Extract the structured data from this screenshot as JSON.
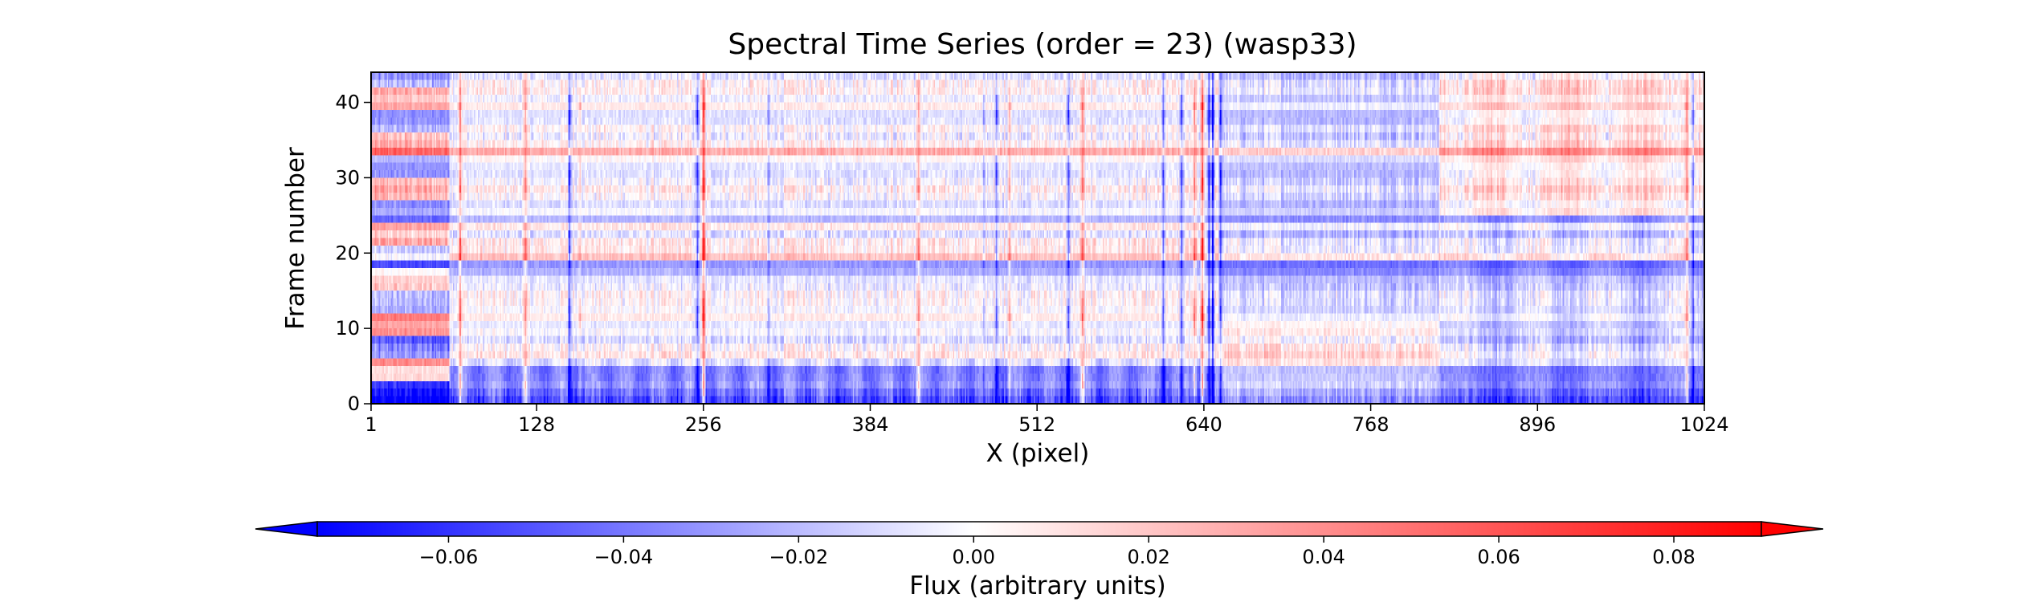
{
  "chart_data": {
    "type": "heatmap",
    "title": "Spectral Time Series (order = 23) (wasp33)",
    "xlabel": "X (pixel)",
    "ylabel": "Frame number",
    "xlim": [
      1,
      1024
    ],
    "ylim": [
      0,
      44
    ],
    "x_ticks": [
      1,
      128,
      256,
      384,
      512,
      640,
      768,
      896,
      1024
    ],
    "x_tick_labels": [
      "1",
      "128",
      "256",
      "384",
      "512",
      "640",
      "768",
      "896",
      "1024"
    ],
    "y_ticks": [
      0,
      10,
      20,
      30,
      40
    ],
    "y_tick_labels": [
      "0",
      "10",
      "20",
      "30",
      "40"
    ],
    "n_frames": 44,
    "n_pixels": 1024,
    "colormap": "bwr",
    "color_min": -0.075,
    "color_max": 0.09,
    "features": {
      "vertical_columns": [
        {
          "x": 68,
          "amplitude": 0.05
        },
        {
          "x": 118,
          "amplitude": 0.04
        },
        {
          "x": 152,
          "amplitude": -0.07
        },
        {
          "x": 160,
          "amplitude": 0.03
        },
        {
          "x": 250,
          "amplitude": -0.07
        },
        {
          "x": 255,
          "amplitude": 0.09
        },
        {
          "x": 305,
          "amplitude": -0.035
        },
        {
          "x": 420,
          "amplitude": 0.035
        },
        {
          "x": 470,
          "amplitude": -0.03
        },
        {
          "x": 480,
          "amplitude": -0.06
        },
        {
          "x": 490,
          "amplitude": 0.04
        },
        {
          "x": 535,
          "amplitude": -0.06
        },
        {
          "x": 546,
          "amplitude": 0.06
        },
        {
          "x": 608,
          "amplitude": -0.05
        },
        {
          "x": 622,
          "amplitude": -0.06
        },
        {
          "x": 632,
          "amplitude": 0.06
        },
        {
          "x": 638,
          "amplitude": 0.09
        },
        {
          "x": 643,
          "amplitude": -0.08
        },
        {
          "x": 646,
          "amplitude": -0.09
        },
        {
          "x": 652,
          "amplitude": -0.05
        },
        {
          "x": 1010,
          "amplitude": 0.05
        },
        {
          "x": 1015,
          "amplitude": -0.05
        }
      ],
      "horizontal_bands": [
        {
          "frame": 0,
          "amplitude": -0.045
        },
        {
          "frame": 1,
          "amplitude": -0.04
        },
        {
          "frame": 2,
          "amplitude": -0.03
        },
        {
          "frame": 3,
          "amplitude": -0.025
        },
        {
          "frame": 4,
          "amplitude": -0.02
        },
        {
          "frame": 8,
          "amplitude": -0.015
        },
        {
          "frame": 17,
          "amplitude": -0.015
        },
        {
          "frame": 18,
          "amplitude": -0.025
        },
        {
          "frame": 19,
          "amplitude": 0.015
        },
        {
          "frame": 20,
          "amplitude": 0.01
        },
        {
          "frame": 24,
          "amplitude": -0.02
        },
        {
          "frame": 28,
          "amplitude": 0.015
        },
        {
          "frame": 33,
          "amplitude": 0.02
        },
        {
          "frame": 38,
          "amplitude": -0.01
        }
      ]
    },
    "colorbar": {
      "label": "Flux (arbitrary units)",
      "orientation": "horizontal",
      "extend": "both",
      "ticks": [
        -0.06,
        -0.04,
        -0.02,
        0.0,
        0.02,
        0.04,
        0.06,
        0.08
      ],
      "tick_labels": [
        "−0.06",
        "−0.04",
        "−0.02",
        "0.00",
        "0.02",
        "0.04",
        "0.06",
        "0.08"
      ],
      "range": [
        -0.075,
        0.09
      ]
    },
    "grid": false,
    "legend": "none"
  }
}
